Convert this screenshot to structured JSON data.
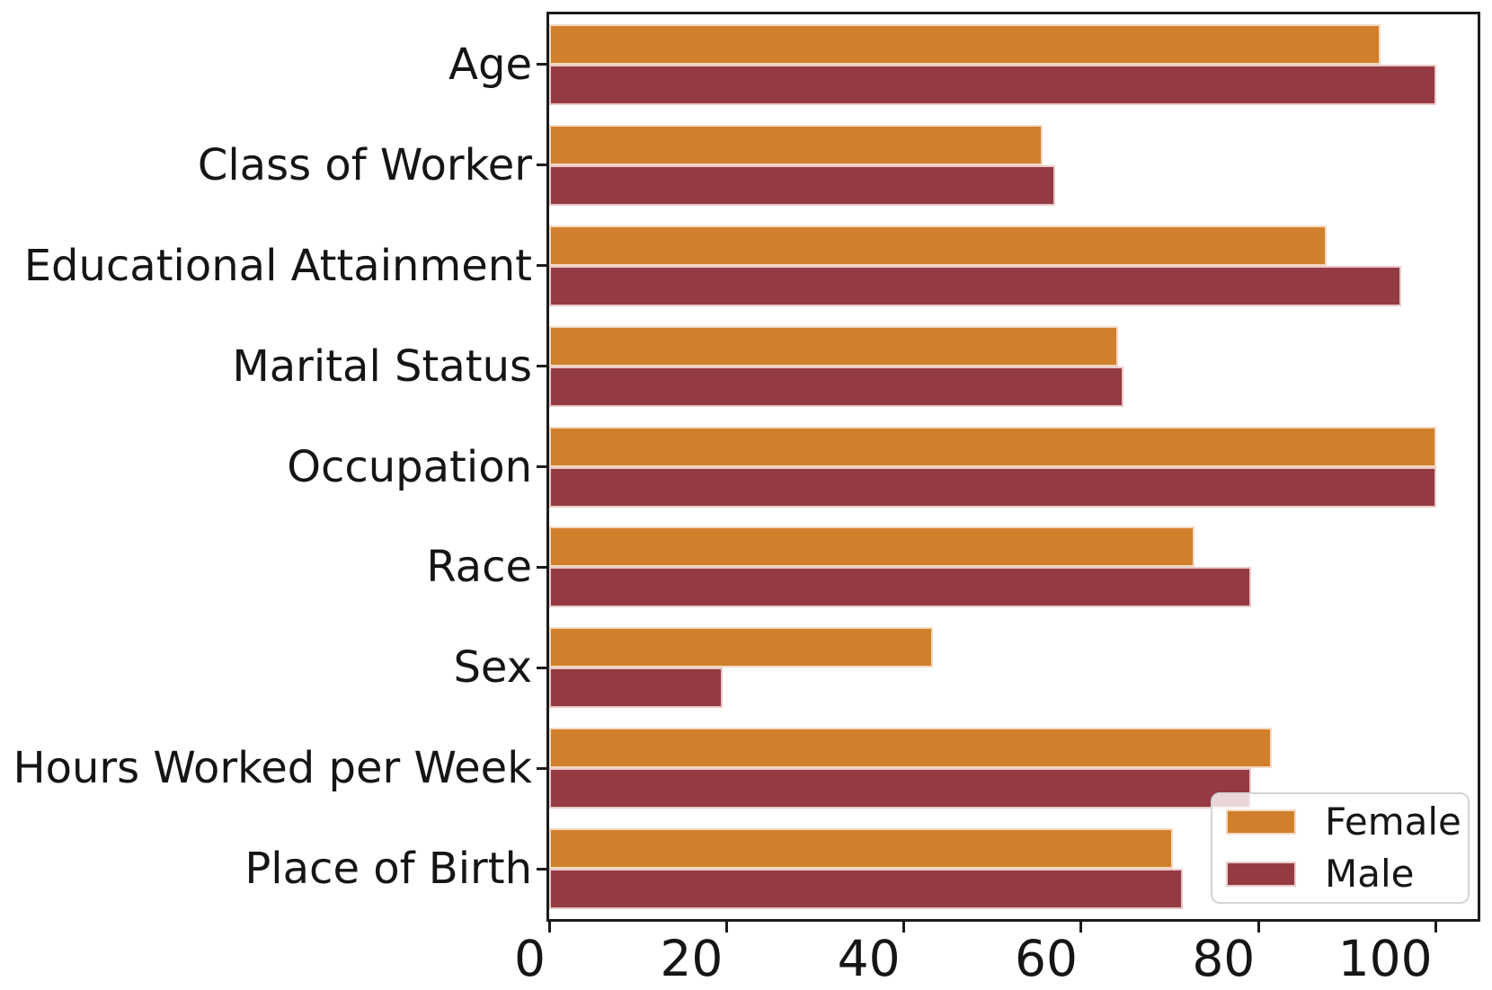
{
  "chart_data": {
    "type": "bar",
    "orientation": "horizontal",
    "title": "",
    "xlabel": "",
    "ylabel": "",
    "categories": [
      "Age",
      "Class of Worker",
      "Educational Attainment",
      "Marital Status",
      "Occupation",
      "Race",
      "Sex",
      "Hours Worked per Week",
      "Place of Birth"
    ],
    "series": [
      {
        "name": "Female",
        "color": "#d0802b",
        "values": [
          93.8,
          55.6,
          87.7,
          64.2,
          100.0,
          72.8,
          43.3,
          81.5,
          70.3
        ]
      },
      {
        "name": "Male",
        "color": "#943a43",
        "values": [
          100.0,
          57.1,
          96.1,
          64.8,
          100.0,
          79.2,
          19.6,
          79.2,
          71.5
        ]
      }
    ],
    "x_tick_labels": [
      "0",
      "20",
      "40",
      "60",
      "80",
      "100"
    ],
    "xlim": [
      0,
      104.7
    ],
    "grid": false,
    "legend": {
      "position": "lower right",
      "items": [
        "Female",
        "Male"
      ]
    }
  },
  "colors": {
    "female_bar": "#d0802b",
    "male_bar": "#943a43",
    "bar_edge": "rgba(255,238,234,0.8)",
    "spine": "#1b1b1b",
    "text": "#151515",
    "legend_border": "#d4d4d4",
    "legend_background": "rgba(255,255,255,0.8)"
  }
}
